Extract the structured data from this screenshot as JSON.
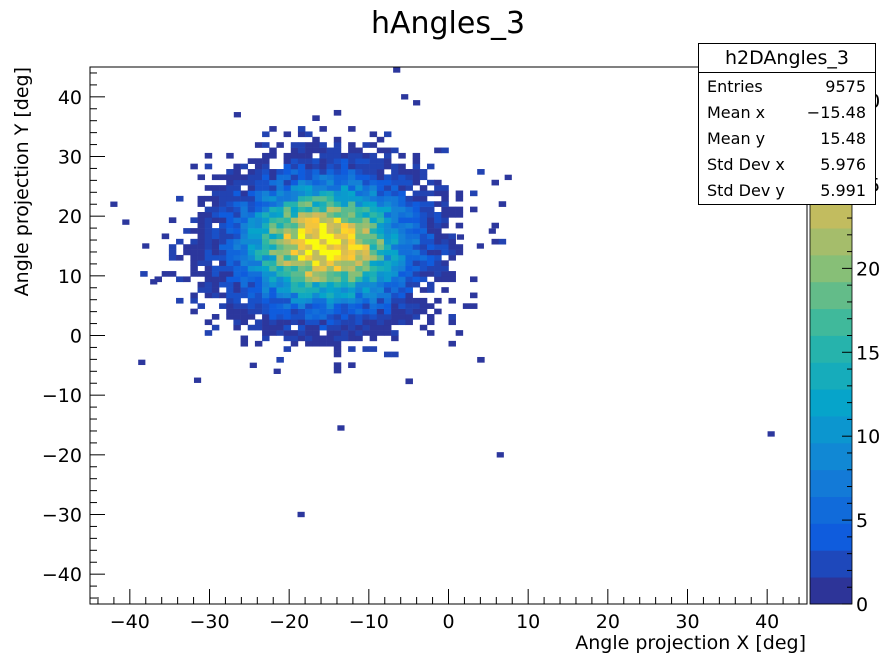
{
  "chart_data": {
    "type": "heatmap",
    "title": "hAngles_3",
    "xlabel": "Angle projection X [deg]",
    "ylabel": "Angle projection Y [deg]",
    "xlim": [
      -45,
      45
    ],
    "ylim": [
      -45,
      45
    ],
    "x_ticks": [
      "−40",
      "−30",
      "−20",
      "−10",
      "0",
      "10",
      "20",
      "30",
      "40"
    ],
    "x_tick_values": [
      -40,
      -30,
      -20,
      -10,
      0,
      10,
      20,
      30,
      40
    ],
    "y_ticks": [
      "40",
      "30",
      "20",
      "10",
      "0",
      "−10",
      "−20",
      "−30",
      "−40"
    ],
    "y_tick_values": [
      40,
      30,
      20,
      10,
      0,
      -10,
      -20,
      -30,
      -40
    ],
    "colorbar": {
      "ticks": [
        "0",
        "5",
        "10",
        "15",
        "20",
        "25",
        "30"
      ],
      "tick_values": [
        0,
        5,
        10,
        15,
        20,
        25,
        30
      ],
      "range": [
        0,
        32
      ]
    },
    "distribution": {
      "shape": "2D gaussian cluster",
      "center": [
        -15.48,
        15.48
      ],
      "std": [
        5.976,
        5.991
      ],
      "peak_count": 31
    },
    "outliers": [
      [
        -6.5,
        44.5
      ],
      [
        -5.5,
        40
      ],
      [
        -4,
        39
      ],
      [
        -26.5,
        37
      ],
      [
        -42,
        22
      ],
      [
        -40.5,
        19
      ],
      [
        -38,
        15
      ],
      [
        -37,
        9
      ],
      [
        -38.5,
        -4.5
      ],
      [
        -31.5,
        -7.5
      ],
      [
        -24.5,
        -5
      ],
      [
        -21.5,
        -6
      ],
      [
        -13.5,
        -15.5
      ],
      [
        6.5,
        -20
      ],
      [
        40.5,
        -16.5
      ],
      [
        -18.5,
        -30
      ],
      [
        7.5,
        26.5
      ],
      [
        4,
        15
      ],
      [
        5.5,
        17.5
      ],
      [
        1.5,
        16.5
      ]
    ]
  },
  "stats": {
    "title": "h2DAngles_3",
    "rows": [
      {
        "label": "Entries",
        "value": "9575"
      },
      {
        "label": "Mean x",
        "value": "−15.48"
      },
      {
        "label": "Mean y",
        "value": "15.48"
      },
      {
        "label": "Std Dev x",
        "value": "5.976"
      },
      {
        "label": "Std Dev y",
        "value": "5.991"
      }
    ]
  },
  "colors": {
    "palette": [
      "#352a87",
      "#0f5cdd",
      "#1481d6",
      "#06a4ca",
      "#2eb7a4",
      "#87bf77",
      "#d1bb59",
      "#fec832",
      "#f9fb0e"
    ]
  }
}
